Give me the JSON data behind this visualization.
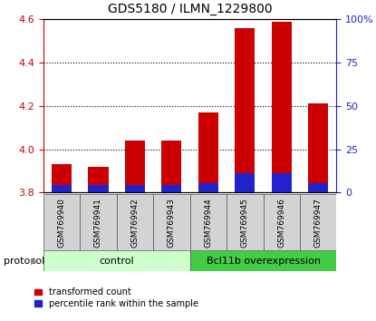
{
  "title": "GDS5180 / ILMN_1229800",
  "categories": [
    "GSM769940",
    "GSM769941",
    "GSM769942",
    "GSM769943",
    "GSM769944",
    "GSM769945",
    "GSM769946",
    "GSM769947"
  ],
  "red_values": [
    3.93,
    3.92,
    4.04,
    4.04,
    4.17,
    4.56,
    4.59,
    4.21
  ],
  "blue_values": [
    3.835,
    3.835,
    3.835,
    3.835,
    3.845,
    3.89,
    3.89,
    3.845
  ],
  "bar_bottom": 3.8,
  "ylim_left": [
    3.8,
    4.6
  ],
  "ylim_right": [
    0,
    100
  ],
  "yticks_left": [
    3.8,
    4.0,
    4.2,
    4.4,
    4.6
  ],
  "yticks_right": [
    0,
    25,
    50,
    75,
    100
  ],
  "ytick_labels_right": [
    "0",
    "25",
    "50",
    "75",
    "100%"
  ],
  "control_label": "control",
  "treatment_label": "Bcl11b overexpression",
  "protocol_label": "protocol",
  "legend_red": "transformed count",
  "legend_blue": "percentile rank within the sample",
  "red_color": "#cc0000",
  "blue_color": "#2222cc",
  "control_bg": "#ccffcc",
  "treatment_bg": "#44cc44",
  "bar_width": 0.55
}
